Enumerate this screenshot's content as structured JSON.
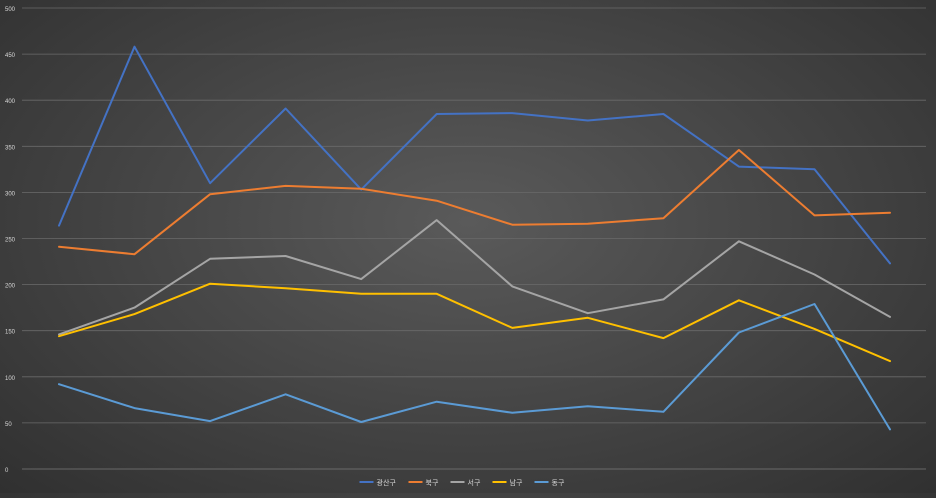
{
  "chart_data": {
    "type": "line",
    "title": "",
    "xlabel": "",
    "ylabel": "",
    "ylim": [
      0,
      500
    ],
    "yticks": [
      "0",
      "50",
      "100",
      "150",
      "200",
      "250",
      "300",
      "350",
      "400",
      "450",
      "500"
    ],
    "grid": true,
    "legend_position": "bottom",
    "x": [
      1,
      2,
      3,
      4,
      5,
      6,
      7,
      8,
      9,
      10,
      11,
      12
    ],
    "series": [
      {
        "name": "광산구",
        "color": "#4472C4",
        "values": [
          264,
          458,
          310,
          391,
          303,
          385,
          386,
          378,
          385,
          328,
          325,
          223
        ]
      },
      {
        "name": "북구",
        "color": "#ED7D31",
        "values": [
          241,
          233,
          298,
          307,
          304,
          291,
          265,
          266,
          272,
          346,
          275,
          278
        ]
      },
      {
        "name": "서구",
        "color": "#A5A5A5",
        "values": [
          146,
          175,
          228,
          231,
          206,
          270,
          198,
          169,
          184,
          247,
          211,
          165
        ]
      },
      {
        "name": "남구",
        "color": "#FFC000",
        "values": [
          144,
          168,
          201,
          196,
          190,
          190,
          153,
          164,
          142,
          183,
          152,
          117
        ]
      },
      {
        "name": "동구",
        "color": "#5B9BD5",
        "values": [
          92,
          66,
          52,
          81,
          51,
          73,
          61,
          68,
          62,
          148,
          179,
          43
        ]
      }
    ]
  }
}
